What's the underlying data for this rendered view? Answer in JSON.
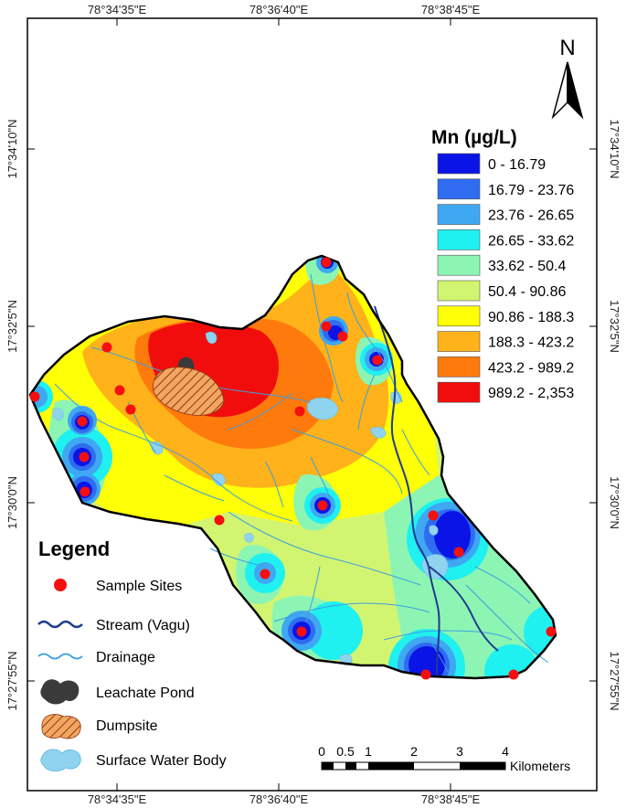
{
  "coordinates": {
    "top": [
      "78°34'35\"E",
      "78°36'40\"E",
      "78°38'45\"E"
    ],
    "bottom": [
      "78°34'35\"E",
      "78°36'40\"E",
      "78°38'45\"E"
    ],
    "left": [
      "17°34'10\"N",
      "17°32'5\"N",
      "17°30'0\"N",
      "17°27'55\"N"
    ],
    "right": [
      "17°34'10\"N",
      "17°32'5\"N",
      "17°30'0\"N",
      "17°27'55\"N"
    ]
  },
  "north_arrow": {
    "label": "N"
  },
  "mn_legend": {
    "title": "Mn (µg/L)",
    "classes": [
      {
        "label": "0 - 16.79",
        "color": "#0a14e6"
      },
      {
        "label": "16.79 - 23.76",
        "color": "#2f6cf0"
      },
      {
        "label": "23.76 - 26.65",
        "color": "#3fa8f2"
      },
      {
        "label": "26.65 - 33.62",
        "color": "#1ff0f0"
      },
      {
        "label": "33.62 - 50.4",
        "color": "#8cf5b4"
      },
      {
        "label": "50.4 - 90.86",
        "color": "#d2f571"
      },
      {
        "label": "90.86 - 188.3",
        "color": "#ffff05"
      },
      {
        "label": "188.3 - 423.2",
        "color": "#ffb219"
      },
      {
        "label": "423.2 - 989.2",
        "color": "#ff7a0d"
      },
      {
        "label": "989.2 - 2,353",
        "color": "#f20d0d"
      }
    ]
  },
  "legend": {
    "title": "Legend",
    "items": [
      {
        "label": "Sample Sites",
        "icon": "red-circle"
      },
      {
        "label": "Stream (Vagu)",
        "icon": "dark-blue-wavy-line"
      },
      {
        "label": "Drainage",
        "icon": "light-blue-wavy-line"
      },
      {
        "label": "Leachate Pond",
        "icon": "dark-grey-blob"
      },
      {
        "label": "Dumpsite",
        "icon": "orange-hatched-blob"
      },
      {
        "label": "Surface Water Body",
        "icon": "light-blue-blob"
      }
    ]
  },
  "scale_bar": {
    "labels": [
      "0",
      "0.5",
      "1",
      "2",
      "3",
      "4"
    ],
    "unit": "Kilometers"
  },
  "colors": {
    "sample_site": "#f50f0f",
    "stream": "#1f3c8c",
    "drainage": "#3d9fe0",
    "leachate": "#3a3a3a",
    "dumpsite": "#f08a3a",
    "water_body": "#8fd3ee"
  }
}
